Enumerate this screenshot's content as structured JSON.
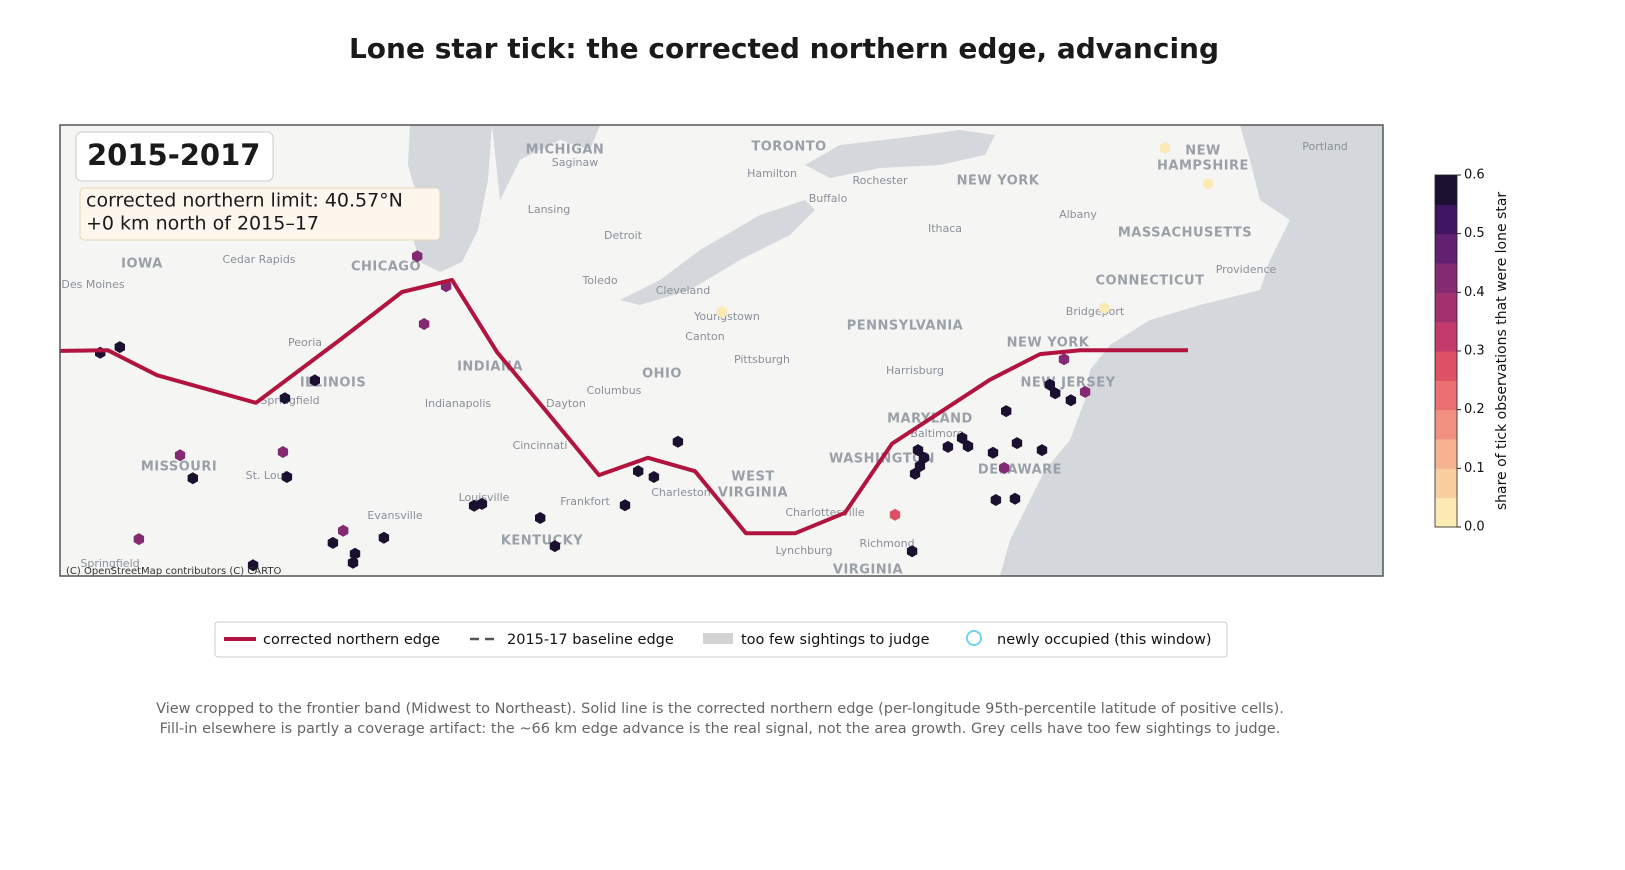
{
  "chart_data": {
    "type": "map",
    "title": "Lone star tick: the corrected northern edge, advancing",
    "window": "2015-2017",
    "info_lines": [
      "corrected northern limit: 40.57°N",
      "+0 km north of 2015–17"
    ],
    "attribution": "(C) OpenStreetMap contributors (C) CARTO",
    "places": [
      "MICHIGAN",
      "Saginaw",
      "TORONTO",
      "Hamilton",
      "Rochester",
      "NEW YORK",
      "NEW",
      "HAMPSHIRE",
      "Portland",
      "Buffalo",
      "Albany",
      "Lansing",
      "Ithaca",
      "MASSACHUSETTS",
      "Detroit",
      "IOWA",
      "Cedar Rapids",
      "CHICAGO",
      "Providence",
      "Des Moines",
      "Toledo",
      "CONNECTICUT",
      "Cleveland",
      "Youngstown",
      "Bridgeport",
      "PENNSYLVANIA",
      "Canton",
      "Peoria",
      "NEW YORK",
      "Pittsburgh",
      "INDIANA",
      "OHIO",
      "Harrisburg",
      "ILLINOIS",
      "NEW JERSEY",
      "Columbus",
      "Springfield",
      "Indianapolis",
      "Dayton",
      "MARYLAND",
      "Baltimore",
      "Cincinnati",
      "WASHINGTON",
      "MISSOURI",
      "WEST",
      "DELAWARE",
      "St. Louis",
      "VIRGINIA",
      "Charleston",
      "Louisville",
      "Frankfort",
      "Charlottesville",
      "Evansville",
      "KENTUCKY",
      "Richmond",
      "Lynchburg",
      "Springfield",
      "VIRGINIA"
    ],
    "edge": {
      "name": "corrected northern edge",
      "color": "#b0143f",
      "lon": [
        -94.97,
        -93.99,
        -92.99,
        -90.97,
        -89.26,
        -87.99,
        -86.97,
        -86.05,
        -85.07,
        -83.97,
        -82.97,
        -82.01,
        -80.97,
        -79.97,
        -78.95,
        -77.99,
        -75.99,
        -74.97,
        -74.15,
        -71.95
      ],
      "lat": [
        40.55,
        40.56,
        40.17,
        39.74,
        40.72,
        41.47,
        41.66,
        40.53,
        39.63,
        38.61,
        38.88,
        38.67,
        37.7,
        37.7,
        38.02,
        39.1,
        40.1,
        40.5,
        40.56,
        40.56
      ]
    },
    "cells": {
      "lon": [
        -93.75,
        -94.15,
        -89.77,
        -90.38,
        -87.68,
        -87.09,
        -87.54,
        -92.52,
        -90.42,
        -92.26,
        -90.34,
        -93.36,
        -91.03,
        -89.19,
        -89.4,
        -88.95,
        -88.99,
        -88.36,
        -86.52,
        -86.36,
        -85.17,
        -84.87,
        -83.44,
        -83.17,
        -82.85,
        -82.36,
        -77.93,
        -77.58,
        -77.46,
        -77.34,
        -77.42,
        -77.52,
        -76.85,
        -76.56,
        -76.44,
        -75.93,
        -75.7,
        -75.66,
        -75.44,
        -75.87,
        -75.48,
        -74.93,
        -74.77,
        -74.66,
        -74.34,
        -74.05,
        -74.48,
        -72.42,
        -71.54,
        -73.66,
        -81.46
      ],
      "lat": [
        40.61,
        40.52,
        40.09,
        39.81,
        42.03,
        41.56,
        40.97,
        38.92,
        38.97,
        38.56,
        38.58,
        37.61,
        37.2,
        37.74,
        37.55,
        37.38,
        37.24,
        37.63,
        38.13,
        38.16,
        37.94,
        37.5,
        38.14,
        38.67,
        38.58,
        39.13,
        37.99,
        37.42,
        39.0,
        38.88,
        38.75,
        38.63,
        39.05,
        39.19,
        39.06,
        38.96,
        38.72,
        39.61,
        39.11,
        38.22,
        38.24,
        39.0,
        40.02,
        39.89,
        39.78,
        39.91,
        40.42,
        43.72,
        43.16,
        41.22,
        41.16
      ],
      "share": [
        0.6,
        0.6,
        0.6,
        0.6,
        0.4,
        0.4,
        0.4,
        0.4,
        0.4,
        0.6,
        0.6,
        0.4,
        0.6,
        0.4,
        0.6,
        0.6,
        0.6,
        0.6,
        0.6,
        0.6,
        0.6,
        0.6,
        0.6,
        0.6,
        0.6,
        0.6,
        0.25,
        0.6,
        0.6,
        0.6,
        0.55,
        0.6,
        0.6,
        0.6,
        0.6,
        0.6,
        0.4,
        0.6,
        0.6,
        0.6,
        0.6,
        0.6,
        0.6,
        0.6,
        0.6,
        0.4,
        0.4,
        0,
        0,
        0,
        0
      ]
    },
    "colorbar": {
      "label": "share of tick observations that were lone star",
      "lim": [
        0,
        0.6
      ],
      "step": 0.05,
      "colors": [
        "#fbeab4",
        "#f9cfa0",
        "#f6b291",
        "#f29182",
        "#ea7072",
        "#de5064",
        "#c23b6b",
        "#a3306f",
        "#832a73",
        "#632071",
        "#3f1460",
        "#1b1030"
      ],
      "ticks": [
        {
          "value": 0,
          "label": "0.0"
        },
        {
          "value": 0.1,
          "label": "0.1"
        },
        {
          "value": 0.2,
          "label": "0.2"
        },
        {
          "value": 0.3,
          "label": "0.3"
        },
        {
          "value": 0.4,
          "label": "0.4"
        },
        {
          "value": 0.5,
          "label": "0.5"
        },
        {
          "value": 0.6,
          "label": "0.6"
        }
      ]
    },
    "legend": [
      {
        "name": "corrected northern edge",
        "color": "#b0143f"
      },
      {
        "name": "2015-17 baseline edge",
        "color": "#555555"
      },
      {
        "name": "too few sightings to judge",
        "color": "#d3d3d3"
      },
      {
        "name": "newly occupied (this window)",
        "color": "#6fd3f0"
      }
    ],
    "caption": [
      "View cropped to the frontier band (Midwest to Northeast). Solid line is the corrected northern edge (per-longitude 95th-percentile latitude of positive cells).",
      "Fill-in elsewhere is partly a coverage artifact: the ~66 km edge advance is the real signal, not the area growth. Grey cells have too few sightings to judge."
    ]
  }
}
